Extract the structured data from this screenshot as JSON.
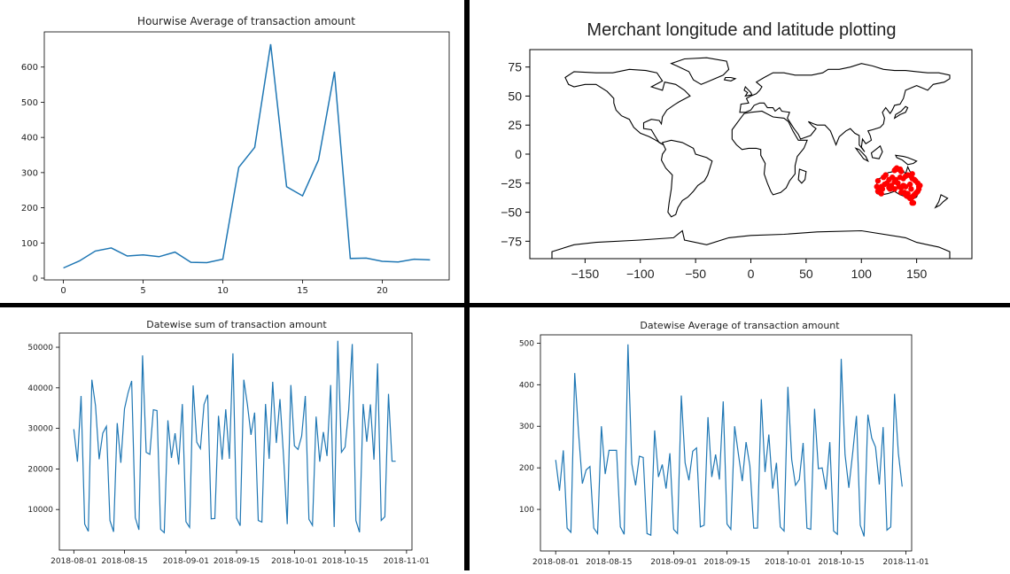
{
  "colors": {
    "line": "#1f77b4",
    "marker": "#ff0000",
    "axis": "#000000"
  },
  "chart_data": [
    {
      "type": "line",
      "title": "Hourwise Average of transaction amount",
      "xlabel": "",
      "ylabel": "",
      "x": [
        0,
        1,
        2,
        3,
        4,
        5,
        6,
        7,
        8,
        9,
        10,
        11,
        12,
        13,
        14,
        15,
        16,
        17,
        18,
        19,
        20,
        21,
        22,
        23
      ],
      "values": [
        29,
        49,
        77,
        86,
        63,
        66,
        61,
        74,
        45,
        44,
        54,
        315,
        372,
        665,
        260,
        234,
        336,
        587,
        56,
        57,
        48,
        46,
        54,
        52
      ],
      "xlim": [
        -1.2,
        24.2
      ],
      "ylim": [
        -5,
        700
      ],
      "xticks": [
        0,
        5,
        10,
        15,
        20
      ],
      "xtick_labels": [
        "0",
        "5",
        "10",
        "15",
        "20"
      ],
      "yticks": [
        0,
        100,
        200,
        300,
        400,
        500,
        600
      ],
      "ytick_labels": [
        "0",
        "100",
        "200",
        "300",
        "400",
        "500",
        "600"
      ],
      "grid": false
    },
    {
      "type": "scatter",
      "title": "Merchant longitude and latitude plotting",
      "xlabel": "",
      "ylabel": "",
      "xlim": [
        -200,
        200
      ],
      "ylim": [
        -90,
        90
      ],
      "xticks": [
        -150,
        -100,
        -50,
        0,
        50,
        100,
        150
      ],
      "xtick_labels": [
        "−150",
        "−100",
        "−50",
        "0",
        "50",
        "100",
        "150"
      ],
      "yticks": [
        75,
        50,
        25,
        0,
        -25,
        -50,
        -75
      ],
      "ytick_labels": [
        "75",
        "50",
        "25",
        "0",
        "−25",
        "−50",
        "−75"
      ],
      "points": [
        [
          115,
          -32
        ],
        [
          116,
          -31.5
        ],
        [
          117,
          -33
        ],
        [
          118,
          -34
        ],
        [
          119,
          -30
        ],
        [
          121,
          -26
        ],
        [
          123,
          -25
        ],
        [
          125,
          -29
        ],
        [
          127,
          -27
        ],
        [
          130,
          -24
        ],
        [
          131,
          -22
        ],
        [
          133,
          -25
        ],
        [
          134,
          -28
        ],
        [
          136,
          -29
        ],
        [
          138,
          -27
        ],
        [
          139,
          -33
        ],
        [
          140,
          -35
        ],
        [
          141,
          -36
        ],
        [
          142,
          -34
        ],
        [
          143,
          -37
        ],
        [
          144,
          -38
        ],
        [
          145,
          -38
        ],
        [
          146,
          -37
        ],
        [
          147,
          -36
        ],
        [
          148,
          -35
        ],
        [
          149,
          -34
        ],
        [
          150,
          -33
        ],
        [
          151,
          -32
        ],
        [
          152,
          -30
        ],
        [
          152,
          -28
        ],
        [
          153,
          -27
        ],
        [
          151,
          -25
        ],
        [
          149,
          -23
        ],
        [
          148,
          -22
        ],
        [
          146,
          -21
        ],
        [
          145,
          -19
        ],
        [
          146,
          -17
        ],
        [
          130,
          -14
        ],
        [
          131,
          -13
        ],
        [
          132,
          -12
        ],
        [
          133,
          -13
        ],
        [
          135,
          -13
        ],
        [
          136,
          -15
        ],
        [
          140,
          -19
        ],
        [
          142,
          -18
        ],
        [
          144,
          -26
        ],
        [
          136,
          -33
        ],
        [
          120,
          -20
        ],
        [
          122,
          -18
        ],
        [
          125,
          -22
        ],
        [
          128,
          -20
        ],
        [
          135,
          -20
        ],
        [
          138,
          -21
        ],
        [
          126,
          -30
        ],
        [
          130,
          -30
        ],
        [
          145,
          -30
        ],
        [
          140,
          -28
        ],
        [
          118,
          -28
        ],
        [
          114,
          -28
        ],
        [
          115,
          -23
        ],
        [
          147,
          -42
        ],
        [
          146,
          -42
        ]
      ]
    },
    {
      "type": "line",
      "title": "Datewise sum of transaction amount",
      "xlabel": "",
      "ylabel": "",
      "x_start": "2018-08-01",
      "values": [
        29800,
        21800,
        38000,
        6400,
        4600,
        42000,
        35600,
        22400,
        28800,
        30500,
        7300,
        4500,
        31300,
        21500,
        34800,
        38800,
        41700,
        8000,
        5000,
        48000,
        24100,
        23600,
        34600,
        34400,
        5100,
        4300,
        32000,
        22700,
        28800,
        21100,
        36000,
        7000,
        5600,
        40600,
        26600,
        25000,
        35900,
        38300,
        7700,
        7800,
        33100,
        22300,
        34700,
        22500,
        48500,
        7900,
        6000,
        42000,
        35800,
        28400,
        33900,
        7300,
        6900,
        36000,
        22500,
        41500,
        26400,
        37200,
        22900,
        6400,
        40700,
        25700,
        24800,
        28100,
        38000,
        7600,
        6100,
        32900,
        21800,
        29100,
        23200,
        40700,
        5700,
        51600,
        24100,
        25400,
        34600,
        50800,
        7300,
        4400,
        36000,
        26700,
        35900,
        22300,
        46000,
        7300,
        8200,
        38500,
        21900,
        21900
      ],
      "xticks": [
        "2018-08-01",
        "2018-08-15",
        "2018-09-01",
        "2018-09-15",
        "2018-10-01",
        "2018-10-15",
        "2018-11-01"
      ],
      "yticks": [
        10000,
        20000,
        30000,
        40000,
        50000
      ],
      "ylim": [
        0,
        53500
      ],
      "grid": false
    },
    {
      "type": "line",
      "title": "Datewise Average of transaction amount",
      "xlabel": "",
      "ylabel": "",
      "x_start": "2018-08-01",
      "values": [
        219,
        145,
        242,
        55,
        45,
        428,
        285,
        162,
        195,
        203,
        55,
        42,
        300,
        185,
        242,
        242,
        242,
        58,
        40,
        497,
        210,
        158,
        228,
        225,
        42,
        38,
        290,
        178,
        208,
        150,
        235,
        52,
        42,
        374,
        212,
        170,
        240,
        248,
        58,
        62,
        322,
        178,
        232,
        172,
        360,
        65,
        52,
        300,
        232,
        168,
        262,
        205,
        55,
        55,
        365,
        190,
        280,
        150,
        212,
        58,
        48,
        395,
        220,
        158,
        172,
        260,
        55,
        52,
        342,
        198,
        200,
        148,
        262,
        48,
        40,
        462,
        232,
        152,
        235,
        325,
        62,
        35,
        328,
        272,
        250,
        160,
        298,
        50,
        58,
        378,
        235,
        155
      ],
      "xticks": [
        "2018-08-01",
        "2018-08-15",
        "2018-09-01",
        "2018-09-15",
        "2018-10-01",
        "2018-10-15",
        "2018-11-01"
      ],
      "yticks": [
        100,
        200,
        300,
        400,
        500
      ],
      "ylim": [
        0,
        520
      ],
      "grid": false
    }
  ]
}
